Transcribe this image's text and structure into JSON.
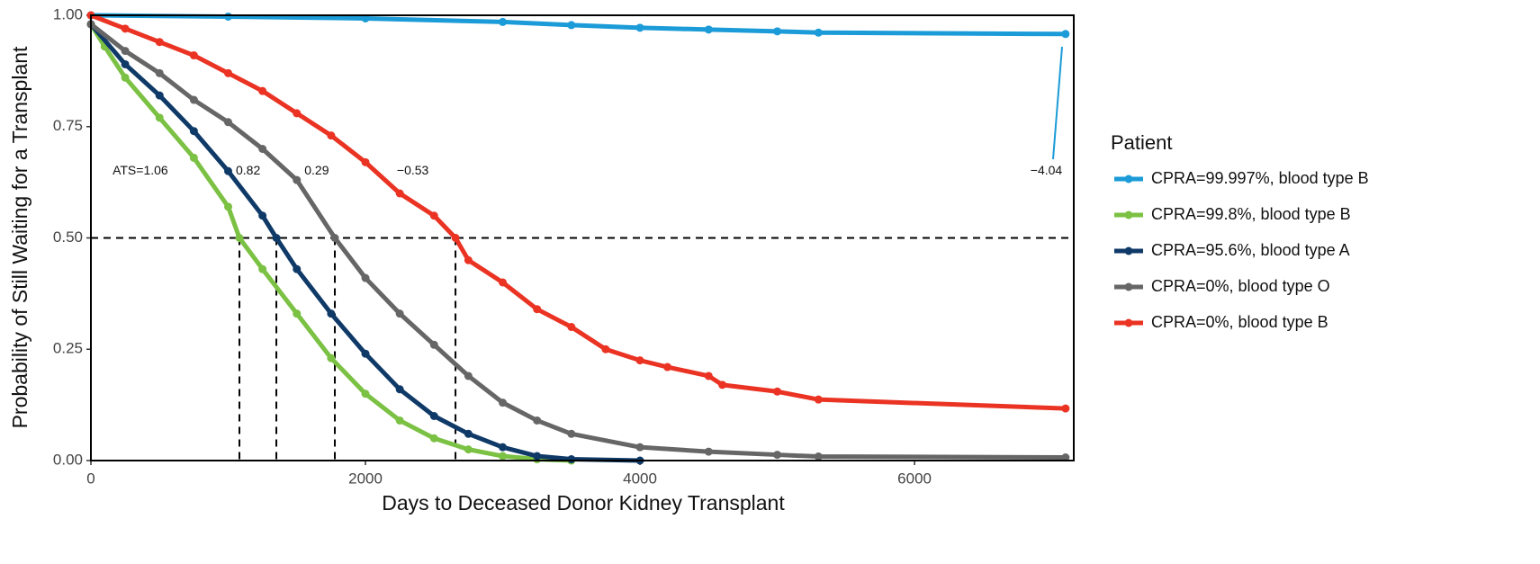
{
  "chart_data": {
    "type": "line",
    "x_label": "Days to Deceased Donor Kidney Transplant",
    "y_label": "Probability of Still Waiting for a Transplant",
    "legend_title": "Patient",
    "legend_position": "right",
    "xlim": [
      0,
      7160
    ],
    "ylim": [
      0,
      1
    ],
    "xticks": [
      0,
      2000,
      4000,
      6000
    ],
    "yticks": [
      {
        "value": 0,
        "label": "0.00"
      },
      {
        "value": 0.25,
        "label": "0.25"
      },
      {
        "value": 0.5,
        "label": "0.50"
      },
      {
        "value": 0.75,
        "label": "0.75"
      },
      {
        "value": 1,
        "label": "1.00"
      }
    ],
    "reference_y": 0.5,
    "median_days": [
      1082,
      1351,
      1777,
      2656
    ],
    "annotations": [
      {
        "text": "ATS=1.06",
        "x": 360,
        "y": 0.65
      },
      {
        "text": "0.82",
        "x": 1145,
        "y": 0.65
      },
      {
        "text": "0.29",
        "x": 1645,
        "y": 0.65
      },
      {
        "text": "−0.53",
        "x": 2345,
        "y": 0.65
      },
      {
        "text": "−4.04",
        "x": 6960,
        "y": 0.65
      }
    ],
    "series": [
      {
        "name": "CPRA=99.997%, blood type B",
        "color": "#1b9bd7",
        "x": [
          0,
          1000,
          2000,
          3000,
          3500,
          4000,
          4500,
          5000,
          5300,
          7100
        ],
        "values": [
          1.0,
          0.997,
          0.993,
          0.985,
          0.978,
          0.972,
          0.968,
          0.964,
          0.961,
          0.958
        ]
      },
      {
        "name": "CPRA=99.8%, blood type B",
        "color": "#7bc143",
        "x": [
          0,
          100,
          250,
          500,
          750,
          1000,
          1082,
          1250,
          1500,
          1750,
          2000,
          2250,
          2500,
          2750,
          3000,
          3250,
          3500
        ],
        "values": [
          0.98,
          0.93,
          0.86,
          0.77,
          0.68,
          0.57,
          0.5,
          0.43,
          0.33,
          0.23,
          0.15,
          0.09,
          0.05,
          0.025,
          0.01,
          0.003,
          0
        ]
      },
      {
        "name": "CPRA=95.6%, blood type A",
        "color": "#0f3a68",
        "x": [
          0,
          250,
          500,
          750,
          1000,
          1250,
          1351,
          1500,
          1750,
          2000,
          2250,
          2500,
          2750,
          3000,
          3250,
          3500,
          4000
        ],
        "values": [
          0.98,
          0.89,
          0.82,
          0.74,
          0.65,
          0.55,
          0.5,
          0.43,
          0.33,
          0.24,
          0.16,
          0.1,
          0.06,
          0.03,
          0.01,
          0.003,
          0
        ]
      },
      {
        "name": "CPRA=0%, blood type O",
        "color": "#666666",
        "x": [
          0,
          250,
          500,
          750,
          1000,
          1250,
          1500,
          1777,
          2000,
          2250,
          2500,
          2750,
          3000,
          3250,
          3500,
          4000,
          4500,
          5000,
          5300,
          7100
        ],
        "values": [
          0.98,
          0.92,
          0.87,
          0.81,
          0.76,
          0.7,
          0.63,
          0.5,
          0.41,
          0.33,
          0.26,
          0.19,
          0.13,
          0.09,
          0.06,
          0.03,
          0.02,
          0.013,
          0.009,
          0.007
        ]
      },
      {
        "name": "CPRA=0%, blood type B",
        "color": "#ea3323",
        "x": [
          0,
          250,
          500,
          750,
          1000,
          1250,
          1500,
          1750,
          2000,
          2250,
          2500,
          2656,
          2750,
          3000,
          3250,
          3500,
          3750,
          4000,
          4200,
          4500,
          4600,
          5000,
          5300,
          7100
        ],
        "values": [
          1.0,
          0.97,
          0.94,
          0.91,
          0.87,
          0.83,
          0.78,
          0.73,
          0.67,
          0.6,
          0.55,
          0.5,
          0.45,
          0.4,
          0.34,
          0.3,
          0.25,
          0.225,
          0.21,
          0.19,
          0.17,
          0.155,
          0.137,
          0.117
        ]
      }
    ]
  }
}
